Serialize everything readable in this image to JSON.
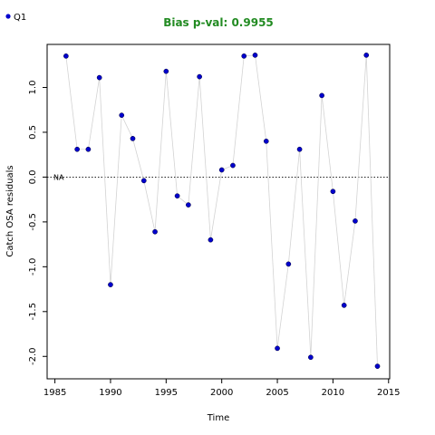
{
  "chart_data": {
    "type": "scatter",
    "title": "Bias p-val: 0.9955",
    "title_color": "#228B22",
    "xlabel": "Time",
    "ylabel": "Catch OSA residuals",
    "xlim": [
      1984.3,
      2015.1
    ],
    "ylim": [
      -2.25,
      1.48
    ],
    "x_ticks": [
      1985,
      1990,
      1995,
      2000,
      2005,
      2010,
      2015
    ],
    "y_ticks": [
      -2.0,
      -1.5,
      -1.0,
      -0.5,
      0.0,
      0.5,
      1.0
    ],
    "y_tick_labels": [
      "-2.0",
      "-1.5",
      "-1.0",
      "-0.5",
      "0.0",
      "0.5",
      "1.0"
    ],
    "reference_line": {
      "y": 0,
      "style": "dotted",
      "label": "NA"
    },
    "legend": {
      "placement": "top-left",
      "entries": [
        "Q1"
      ]
    },
    "series": [
      {
        "name": "Q1",
        "point_color": "#0000CD",
        "line_color": "#D3D3D3",
        "x": [
          1986,
          1987,
          1988,
          1989,
          1990,
          1991,
          1992,
          1993,
          1994,
          1995,
          1996,
          1997,
          1998,
          1999,
          2000,
          2001,
          2002,
          2003,
          2004,
          2005,
          2006,
          2007,
          2008,
          2009,
          2010,
          2011,
          2012,
          2013,
          2014
        ],
        "y": [
          1.35,
          0.31,
          0.31,
          1.11,
          -1.2,
          0.69,
          0.43,
          -0.04,
          -0.61,
          1.18,
          -0.21,
          -0.31,
          1.12,
          -0.7,
          0.08,
          0.13,
          1.35,
          1.36,
          0.4,
          -1.91,
          -0.97,
          0.31,
          -2.01,
          0.91,
          -0.16,
          -1.43,
          -0.49,
          1.36,
          -2.11
        ]
      }
    ]
  }
}
